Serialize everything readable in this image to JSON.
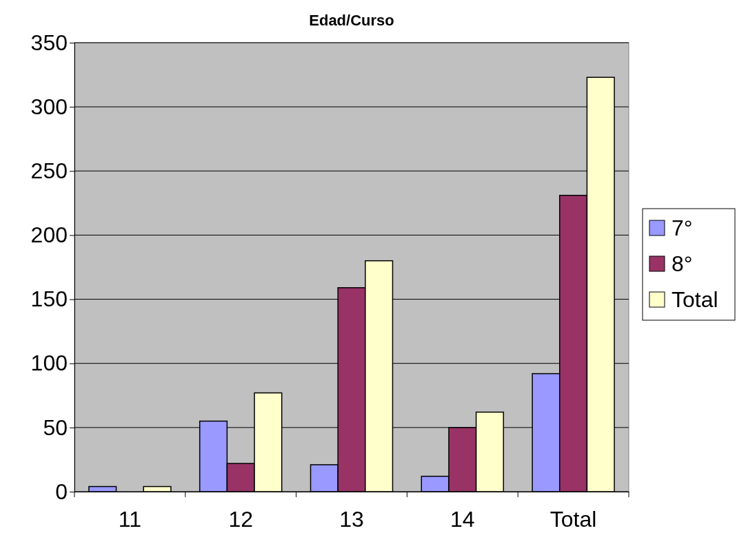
{
  "chart_data": {
    "type": "bar",
    "title": "Edad/Curso",
    "categories": [
      "11",
      "12",
      "13",
      "14",
      "Total"
    ],
    "series": [
      {
        "name": "7°",
        "color": "#9999ff",
        "values": [
          4,
          55,
          21,
          12,
          92
        ]
      },
      {
        "name": "8°",
        "color": "#993366",
        "values": [
          0,
          22,
          159,
          50,
          231
        ]
      },
      {
        "name": "Total",
        "color": "#ffffcc",
        "values": [
          4,
          77,
          180,
          62,
          323
        ]
      }
    ],
    "ylim": [
      0,
      350
    ],
    "yticks": [
      0,
      50,
      100,
      150,
      200,
      250,
      300,
      350
    ],
    "grid": "y",
    "legend": "right"
  }
}
